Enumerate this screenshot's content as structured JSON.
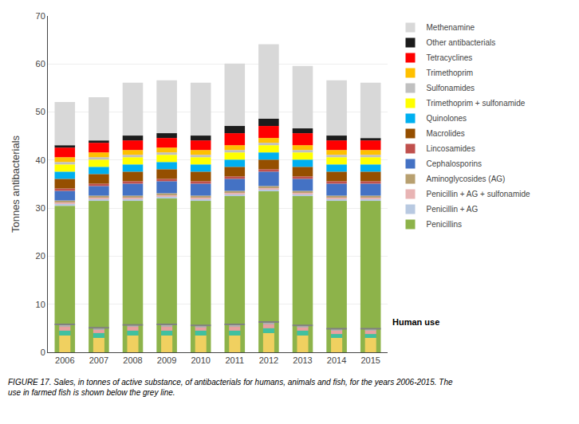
{
  "chart_data": [
    {
      "type": "bar",
      "stacked": true,
      "categories": [
        "2006",
        "2007",
        "2008",
        "2009",
        "2010",
        "2011",
        "2012",
        "2013",
        "2014",
        "2015"
      ],
      "ylabel": "Tonnes antibacterials",
      "ylim": [
        0,
        70
      ],
      "yticks": [
        0,
        10,
        20,
        30,
        40,
        50,
        60,
        70
      ],
      "grid": true,
      "legend": "upper right",
      "annotations": [
        "FIGURE 17. Sales, in tonnes of active substance, of antibacterials for humans, animals and fish, for the years 2006-2015. The\nuse in farmed fish is shown below the grey line."
      ],
      "series": [
        {
          "name": "Penicillins",
          "color": "#8db34a",
          "values": [
            30.5,
            31.5,
            31.5,
            32.0,
            31.5,
            32.5,
            33.5,
            32.5,
            31.5,
            31.5
          ]
        },
        {
          "name": "Penicillin + AG",
          "color": "#b8c9e1",
          "values": [
            0.5,
            0.5,
            0.5,
            0.5,
            0.5,
            0.5,
            0.5,
            0.5,
            0.5,
            0.5
          ]
        },
        {
          "name": "Penicillin + AG + sulfonamide",
          "color": "#e8b4b4",
          "values": [
            0.3,
            0.3,
            0.3,
            0.3,
            0.3,
            0.3,
            0.3,
            0.3,
            0.3,
            0.3
          ]
        },
        {
          "name": "Aminoglycosides (AG)",
          "color": "#b8a070",
          "values": [
            0.3,
            0.3,
            0.3,
            0.3,
            0.3,
            0.3,
            0.3,
            0.3,
            0.3,
            0.3
          ]
        },
        {
          "name": "Cephalosporins",
          "color": "#4472c4",
          "values": [
            2.0,
            2.0,
            2.5,
            2.5,
            2.5,
            2.5,
            3.0,
            2.5,
            2.5,
            2.5
          ]
        },
        {
          "name": "Lincosamides",
          "color": "#c0504d",
          "values": [
            0.5,
            0.5,
            0.5,
            0.5,
            0.5,
            0.5,
            0.5,
            0.5,
            0.5,
            0.5
          ]
        },
        {
          "name": "Macrolides",
          "color": "#954f00",
          "values": [
            2.0,
            2.0,
            2.0,
            2.0,
            2.0,
            2.0,
            2.0,
            2.0,
            2.0,
            2.0
          ]
        },
        {
          "name": "Quinolones",
          "color": "#00b0f0",
          "values": [
            1.5,
            1.5,
            1.5,
            1.5,
            1.5,
            1.5,
            1.5,
            1.5,
            1.5,
            1.5
          ]
        },
        {
          "name": "Trimethoprim + sulfonamide",
          "color": "#ffff00",
          "values": [
            1.5,
            1.5,
            1.5,
            1.5,
            1.5,
            1.5,
            1.5,
            1.5,
            1.5,
            1.5
          ]
        },
        {
          "name": "Sulfonamides",
          "color": "#c0c0c0",
          "values": [
            0.5,
            0.5,
            0.5,
            0.5,
            0.5,
            0.5,
            0.5,
            0.5,
            0.5,
            0.5
          ]
        },
        {
          "name": "Trimethoprim",
          "color": "#ffc000",
          "values": [
            1.0,
            1.0,
            1.0,
            1.0,
            1.0,
            1.0,
            1.0,
            1.0,
            1.0,
            1.0
          ]
        },
        {
          "name": "Tetracyclines",
          "color": "#ff0000",
          "values": [
            2.0,
            2.0,
            2.0,
            2.0,
            2.0,
            2.5,
            2.5,
            2.5,
            2.0,
            2.0
          ]
        },
        {
          "name": "Other antibacterials",
          "color": "#1c1c1c",
          "values": [
            0.5,
            0.5,
            1.0,
            1.0,
            1.0,
            1.5,
            1.5,
            1.0,
            1.0,
            0.5
          ]
        },
        {
          "name": "Methenamine",
          "color": "#d8d8d8",
          "values": [
            9.0,
            9.0,
            11.0,
            11.0,
            11.0,
            13.0,
            15.5,
            13.0,
            11.5,
            11.5
          ]
        }
      ]
    },
    {
      "type": "bar",
      "stacked": true,
      "categories": [
        "2006",
        "2007",
        "2008",
        "2009",
        "2010",
        "2011",
        "2012",
        "2013",
        "2014",
        "2015"
      ],
      "annotations": [
        "Human use"
      ],
      "series": [
        {
          "color": "#f0d060",
          "values": [
            3.5,
            3.0,
            3.5,
            3.5,
            3.5,
            3.5,
            4.0,
            3.5,
            3.0,
            3.0
          ]
        },
        {
          "color": "#40c0a0",
          "values": [
            1.0,
            1.0,
            1.0,
            1.0,
            1.0,
            1.0,
            1.0,
            1.0,
            0.8,
            0.8
          ]
        },
        {
          "color": "#e8a0a0",
          "values": [
            0.8,
            0.8,
            0.8,
            0.8,
            0.8,
            0.8,
            0.8,
            0.8,
            0.8,
            0.8
          ]
        },
        {
          "color": "#b0b0b0",
          "values": [
            0.5,
            0.3,
            0.4,
            0.5,
            0.3,
            0.5,
            0.5,
            0.3,
            0.3,
            0.3
          ]
        }
      ]
    }
  ]
}
